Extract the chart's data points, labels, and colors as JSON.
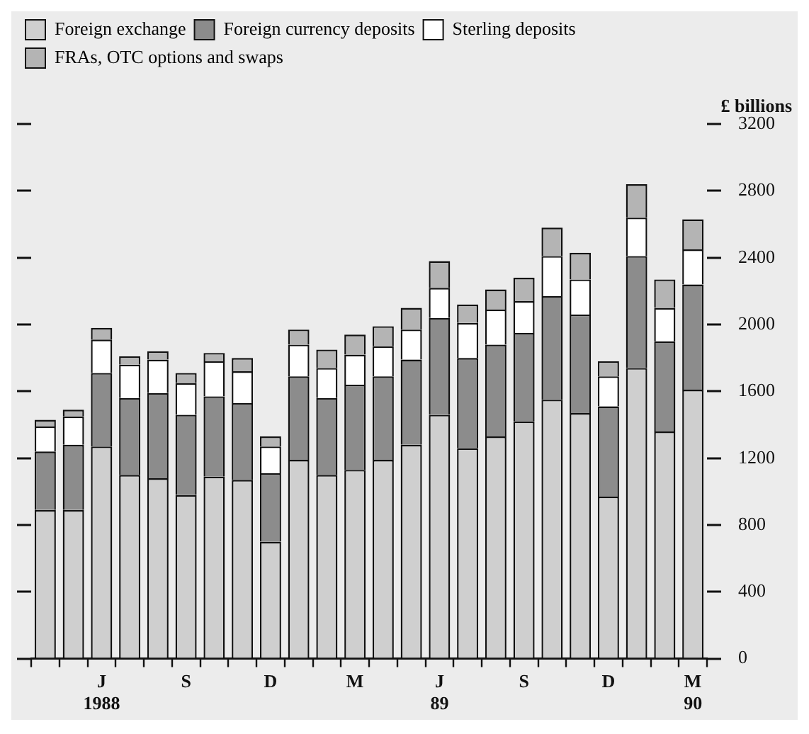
{
  "chart_data": {
    "type": "bar",
    "stacked": true,
    "ylabel": "£ billions",
    "legend": "top",
    "grid": false,
    "categories": [
      null,
      null,
      "J\n1988",
      null,
      null,
      "S",
      null,
      null,
      "D",
      null,
      null,
      "M",
      null,
      null,
      "J\n89",
      null,
      null,
      "S",
      null,
      null,
      "D",
      null,
      null,
      "M\n90"
    ],
    "ylim": [
      0,
      3200
    ],
    "yticks": [
      0,
      400,
      800,
      1200,
      1600,
      2000,
      2400,
      2800,
      3200
    ],
    "series": [
      {
        "name": "Foreign exchange",
        "color": "#cfcfcf",
        "values": [
          890,
          890,
          1270,
          1100,
          1080,
          980,
          1090,
          1070,
          700,
          1190,
          1100,
          1130,
          1190,
          1280,
          1460,
          1260,
          1330,
          1420,
          1550,
          1470,
          970,
          1740,
          1360,
          1610
        ]
      },
      {
        "name": "Foreign currency deposits",
        "color": "#8c8c8c",
        "values": [
          350,
          390,
          440,
          460,
          510,
          480,
          480,
          460,
          410,
          500,
          460,
          510,
          500,
          510,
          580,
          540,
          550,
          530,
          620,
          590,
          540,
          670,
          540,
          630
        ]
      },
      {
        "name": "Sterling deposits",
        "color": "#ffffff",
        "values": [
          150,
          170,
          200,
          200,
          200,
          190,
          210,
          190,
          160,
          190,
          180,
          180,
          180,
          180,
          180,
          210,
          210,
          190,
          240,
          210,
          180,
          230,
          200,
          210
        ]
      },
      {
        "name": "FRAs, OTC options and swaps",
        "color": "#b4b4b4",
        "values": [
          40,
          40,
          70,
          50,
          50,
          60,
          50,
          80,
          60,
          90,
          110,
          120,
          120,
          130,
          160,
          110,
          120,
          140,
          170,
          160,
          90,
          200,
          170,
          180
        ]
      }
    ]
  }
}
